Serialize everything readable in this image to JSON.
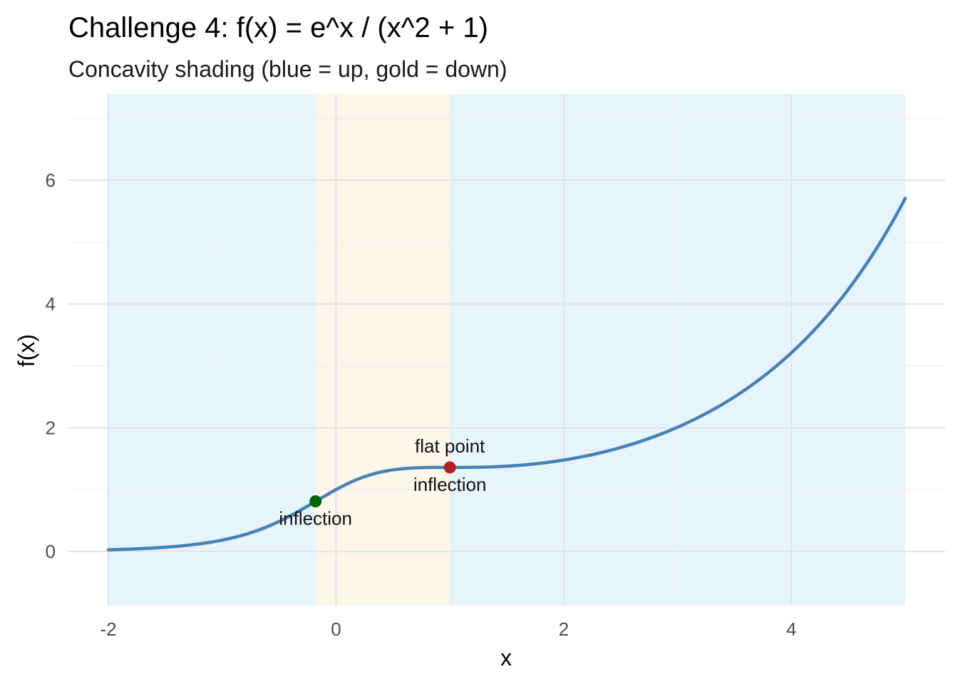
{
  "chart_data": {
    "type": "line",
    "title": "Challenge 4:  f(x) = e^x / (x^2 + 1)",
    "subtitle": "Concavity shading (blue = up, gold = down)",
    "xlabel": "x",
    "ylabel": "f(x)",
    "xlim": [
      -2,
      5
    ],
    "ylim": [
      -0.85,
      7.2
    ],
    "x_ticks": [
      -2,
      0,
      2,
      4
    ],
    "x_tick_labels": [
      "-2",
      "0",
      "2",
      "4"
    ],
    "y_ticks": [
      0,
      2,
      4,
      6
    ],
    "y_tick_labels": [
      "0",
      "2",
      "4",
      "6"
    ],
    "grid": true,
    "legend": "none",
    "function": "exp(x)/(x^2+1)",
    "series": [
      {
        "x": [
          -2,
          -1.75,
          -1.5,
          -1.25,
          -1,
          -0.75,
          -0.5,
          -0.25,
          0,
          0.25,
          0.5,
          0.75,
          1,
          1.25,
          1.5,
          1.75,
          2,
          2.25,
          2.5,
          2.75,
          3,
          3.25,
          3.5,
          3.75,
          4,
          4.25,
          4.5,
          4.75,
          5
        ],
        "y": [
          0.027,
          0.043,
          0.069,
          0.111,
          0.184,
          0.302,
          0.485,
          0.733,
          1.0,
          1.208,
          1.319,
          1.353,
          1.359,
          1.369,
          1.379,
          1.424,
          1.478,
          1.573,
          1.679,
          1.863,
          2.009,
          2.268,
          2.49,
          2.817,
          3.212,
          3.686,
          4.249,
          4.913,
          5.708
        ],
        "color": "#4682b4"
      }
    ],
    "regions": [
      {
        "x0": -2,
        "x1": -0.18,
        "concavity": "up",
        "color": "#e8f4fb"
      },
      {
        "x0": -0.18,
        "x1": 1.0,
        "concavity": "down",
        "color": "#fdf6ea"
      },
      {
        "x0": 1.0,
        "x1": 5,
        "concavity": "up",
        "color": "#e8f4fb"
      }
    ],
    "points": [
      {
        "x": -0.18,
        "y": 0.81,
        "color": "#006400",
        "label": "inflection",
        "label_position": "below"
      },
      {
        "x": 1.0,
        "y": 1.359,
        "color": "#b22222",
        "label_above": "flat point",
        "label": "inflection",
        "label_position": "below"
      }
    ]
  }
}
